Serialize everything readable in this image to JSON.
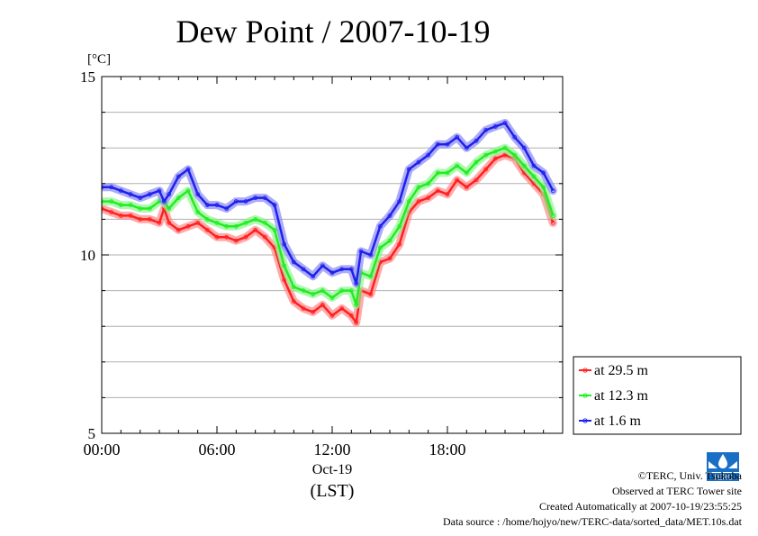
{
  "chart_data": {
    "type": "line",
    "title": "Dew Point / 2007-10-19",
    "ylabel": "[°C]",
    "xlabel": "(LST)",
    "ylim": [
      5,
      15
    ],
    "xlim": [
      0,
      24
    ],
    "y_ticks": [
      "5",
      "10",
      "15"
    ],
    "x_ticks": [
      {
        "x": 0,
        "label": "00:00"
      },
      {
        "x": 6,
        "label": "06:00"
      },
      {
        "x": 12,
        "label": "12:00"
      },
      {
        "x": 18,
        "label": "18:00"
      }
    ],
    "x_date_label": "Oct-19",
    "grid": true,
    "legend_position": "bottom-right",
    "x": [
      0,
      0.5,
      1,
      1.5,
      2,
      2.5,
      3,
      3.25,
      3.5,
      4,
      4.5,
      5,
      5.5,
      6,
      6.5,
      7,
      7.5,
      8,
      8.5,
      9,
      9.5,
      10,
      10.5,
      11,
      11.5,
      12,
      12.5,
      13,
      13.25,
      13.5,
      14,
      14.5,
      15,
      15.5,
      16,
      16.5,
      17,
      17.5,
      18,
      18.5,
      19,
      19.5,
      20,
      20.5,
      21,
      21.5,
      22,
      22.5,
      23,
      23.5
    ],
    "series": [
      {
        "name": "at 29.5 m",
        "color": "#ff2020",
        "values": [
          11.3,
          11.2,
          11.1,
          11.1,
          11.0,
          11.0,
          10.9,
          11.3,
          10.9,
          10.7,
          10.8,
          10.9,
          10.7,
          10.5,
          10.5,
          10.4,
          10.5,
          10.7,
          10.5,
          10.2,
          9.3,
          8.7,
          8.5,
          8.4,
          8.6,
          8.3,
          8.5,
          8.3,
          8.1,
          9.0,
          8.9,
          9.8,
          9.9,
          10.3,
          11.2,
          11.5,
          11.6,
          11.8,
          11.7,
          12.1,
          11.9,
          12.1,
          12.4,
          12.7,
          12.8,
          12.7,
          12.3,
          12.0,
          11.7,
          10.9
        ]
      },
      {
        "name": "at 12.3 m",
        "color": "#20ee20",
        "values": [
          11.5,
          11.5,
          11.4,
          11.4,
          11.3,
          11.3,
          11.5,
          11.5,
          11.3,
          11.6,
          11.8,
          11.2,
          11.0,
          10.9,
          10.8,
          10.8,
          10.9,
          11.0,
          10.9,
          10.7,
          9.7,
          9.1,
          9.0,
          8.9,
          9.0,
          8.8,
          9.0,
          9.0,
          8.6,
          9.5,
          9.4,
          10.2,
          10.4,
          10.8,
          11.5,
          11.9,
          12.0,
          12.3,
          12.3,
          12.5,
          12.3,
          12.6,
          12.8,
          12.9,
          13.0,
          12.8,
          12.5,
          12.2,
          11.9,
          11.1
        ]
      },
      {
        "name": "at 1.6 m",
        "color": "#2020ee",
        "values": [
          11.9,
          11.9,
          11.8,
          11.7,
          11.6,
          11.7,
          11.8,
          11.5,
          11.7,
          12.2,
          12.4,
          11.7,
          11.4,
          11.4,
          11.3,
          11.5,
          11.5,
          11.6,
          11.6,
          11.4,
          10.3,
          9.8,
          9.6,
          9.4,
          9.7,
          9.5,
          9.6,
          9.6,
          9.2,
          10.1,
          10.0,
          10.8,
          11.1,
          11.5,
          12.4,
          12.6,
          12.8,
          13.1,
          13.1,
          13.3,
          13.0,
          13.2,
          13.5,
          13.6,
          13.7,
          13.3,
          13.0,
          12.5,
          12.3,
          11.8
        ]
      }
    ]
  },
  "footer": {
    "copyright": "©TERC, Univ. Tsukuba",
    "observed": "Observed at TERC Tower site",
    "created": "Created Automatically at 2007-10-19/23:55:25",
    "source": "Data source : /home/hojyo/new/TERC-data/sorted_data/MET.10s.dat"
  },
  "logo": {
    "text": "TERC",
    "color": "#1a6fc4",
    "icon": "terc-logo-icon"
  }
}
